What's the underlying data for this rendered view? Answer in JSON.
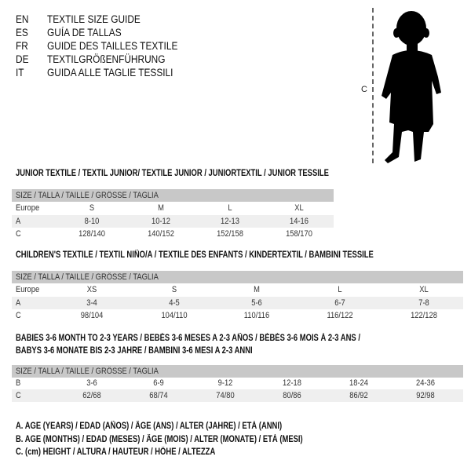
{
  "header": {
    "languages": [
      {
        "code": "EN",
        "text": "TEXTILE SIZE GUIDE"
      },
      {
        "code": "ES",
        "text": "GUÍA DE TALLAS"
      },
      {
        "code": "FR",
        "text": "GUIDE DES TAILLES TEXTILE"
      },
      {
        "code": "DE",
        "text": "TEXTILGRÖßENFÜHRUNG"
      },
      {
        "code": "IT",
        "text": "GUIDA ALLE TAGLIE TESSILI"
      }
    ]
  },
  "figure": {
    "measure_label": "C",
    "icon": "child-silhouette-icon"
  },
  "tables": [
    {
      "title": "JUNIOR TEXTILE / TEXTIL JUNIOR/ TEXTILE JUNIOR / JUNIORTEXTIL / JUNIOR TESSILE",
      "header": "SIZE / TALLA / TAILLE / GRÖSSE / TAGLIA",
      "rows": [
        {
          "label": "Europe",
          "cells": [
            "S",
            "M",
            "L",
            "XL"
          ]
        },
        {
          "label": "A",
          "cells": [
            "8-10",
            "10-12",
            "12-13",
            "14-16"
          ]
        },
        {
          "label": "C",
          "cells": [
            "128/140",
            "140/152",
            "152/158",
            "158/170"
          ]
        }
      ]
    },
    {
      "title": "CHILDREN'S TEXTILE / TEXTIL NIÑO/A / TEXTILE DES ENFANTS / KINDERTEXTIL / BAMBINI TESSILE",
      "header": "SIZE / TALLA / TAILLE / GRÖSSE / TAGLIA",
      "rows": [
        {
          "label": "Europe",
          "cells": [
            "XS",
            "S",
            "M",
            "L",
            "XL"
          ]
        },
        {
          "label": "A",
          "cells": [
            "3-4",
            "4-5",
            "5-6",
            "6-7",
            "7-8"
          ]
        },
        {
          "label": "C",
          "cells": [
            "98/104",
            "104/110",
            "110/116",
            "116/122",
            "122/128"
          ]
        }
      ]
    },
    {
      "title": "BABIES 3-6 MONTH TO 2-3 YEARS / BEBÉS 3-6 MESES A 2-3 AÑOS / BÉBÉS 3-6 MOIS À 2-3 ANS /",
      "title2": "BABYS 3-6 MONATE BIS 2-3 JAHRE / BAMBINI 3-6 MESI A 2-3 ANNI",
      "header": "SIZE / TALLA / TAILLE / GRÖSSE / TAGLIA",
      "rows": [
        {
          "label": "B",
          "cells": [
            "3-6",
            "6-9",
            "9-12",
            "12-18",
            "18-24",
            "24-36"
          ]
        },
        {
          "label": "C",
          "cells": [
            "62/68",
            "68/74",
            "74/80",
            "80/86",
            "86/92",
            "92/98"
          ]
        }
      ]
    }
  ],
  "legend": [
    "A. AGE (YEARS) / EDAD (AÑOS) / ÂGE (ANS) / ALTER (JAHRE) / ETÀ (ANNI)",
    "B. AGE (MONTHS) / EDAD (MESES) / ÂGE (MOIS) / ALTER (MONATE) / ETÀ (MESI)",
    "C. (cm) HEIGHT / ALTURA / HAUTEUR / HÖHE / ALTEZZA"
  ]
}
